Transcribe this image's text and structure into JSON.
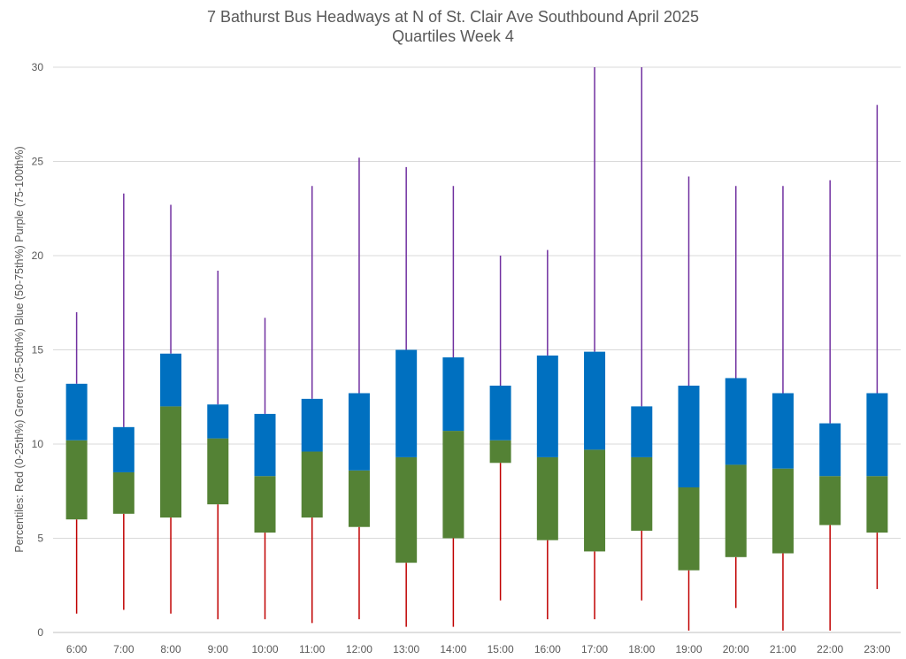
{
  "chart_data": {
    "type": "box",
    "title": "7 Bathurst Bus Headways at N of St. Clair Ave Southbound April 2025",
    "subtitle": "Quartiles Week 4",
    "ylabel": "Percentiles:  Red (0-25th%)  Green (25-50th%)  Blue (50-75th%)  Purple (75-100th%)",
    "xlabel": "",
    "ylim": [
      0,
      30
    ],
    "yticks": [
      0,
      5,
      10,
      15,
      20,
      25,
      30
    ],
    "grid": true,
    "colors": {
      "min_to_q1": "#C00000",
      "q1_to_median": "#548235",
      "median_to_q3": "#0070C0",
      "q3_to_max": "#7030A0",
      "gridline": "#D9D9D9",
      "text": "#595959"
    },
    "categories": [
      "6:00",
      "7:00",
      "8:00",
      "9:00",
      "10:00",
      "11:00",
      "12:00",
      "13:00",
      "14:00",
      "15:00",
      "16:00",
      "17:00",
      "18:00",
      "19:00",
      "20:00",
      "21:00",
      "22:00",
      "23:00"
    ],
    "min": [
      1.0,
      1.2,
      1.0,
      0.7,
      0.7,
      0.5,
      0.7,
      0.3,
      0.3,
      1.7,
      0.7,
      0.7,
      1.7,
      0.1,
      1.3,
      0.1,
      0.1,
      2.3
    ],
    "q1": [
      6.0,
      6.3,
      6.1,
      6.8,
      5.3,
      6.1,
      5.6,
      3.7,
      5.0,
      9.0,
      4.9,
      4.3,
      5.4,
      3.3,
      4.0,
      4.2,
      5.7,
      5.3
    ],
    "median": [
      10.2,
      8.5,
      12.0,
      10.3,
      8.3,
      9.6,
      8.6,
      9.3,
      10.7,
      10.2,
      9.3,
      9.7,
      9.3,
      7.7,
      8.9,
      8.7,
      8.3,
      8.3
    ],
    "q3": [
      13.2,
      10.9,
      14.8,
      12.1,
      11.6,
      12.4,
      12.7,
      15.0,
      14.6,
      13.1,
      14.7,
      14.9,
      12.0,
      13.1,
      13.5,
      12.7,
      11.1,
      12.7
    ],
    "max": [
      17.0,
      23.3,
      22.7,
      19.2,
      16.7,
      23.7,
      25.2,
      24.7,
      23.7,
      20.0,
      20.3,
      30.0,
      30.0,
      24.2,
      23.7,
      23.7,
      24.0,
      28.0
    ]
  }
}
